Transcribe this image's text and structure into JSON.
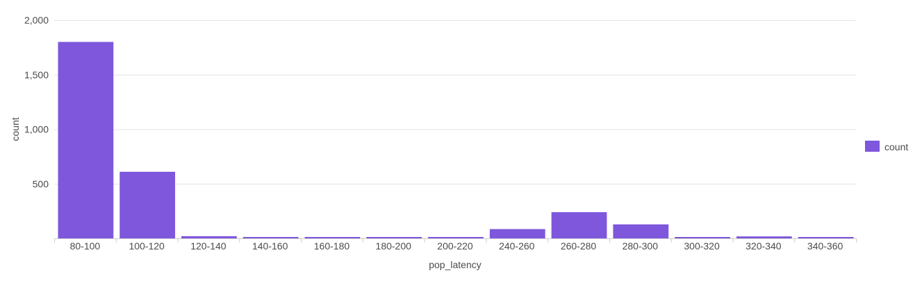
{
  "chart_data": {
    "type": "bar",
    "title": "",
    "xlabel": "pop_latency",
    "ylabel": "count",
    "categories": [
      "80-100",
      "100-120",
      "120-140",
      "140-160",
      "160-180",
      "180-200",
      "200-220",
      "240-260",
      "260-280",
      "280-300",
      "300-320",
      "320-340",
      "340-360"
    ],
    "series": [
      {
        "name": "count",
        "color": "#7e57dc",
        "values": [
          1800,
          610,
          20,
          10,
          10,
          10,
          10,
          85,
          240,
          128,
          10,
          18,
          10
        ]
      }
    ],
    "ylim": [
      0,
      2000
    ],
    "yticks": [
      0,
      500,
      1000,
      1500,
      2000
    ],
    "ytick_labels": [
      "",
      "500",
      "1,000",
      "1,500",
      "2,000"
    ],
    "grid": true,
    "legend_position": "right"
  }
}
